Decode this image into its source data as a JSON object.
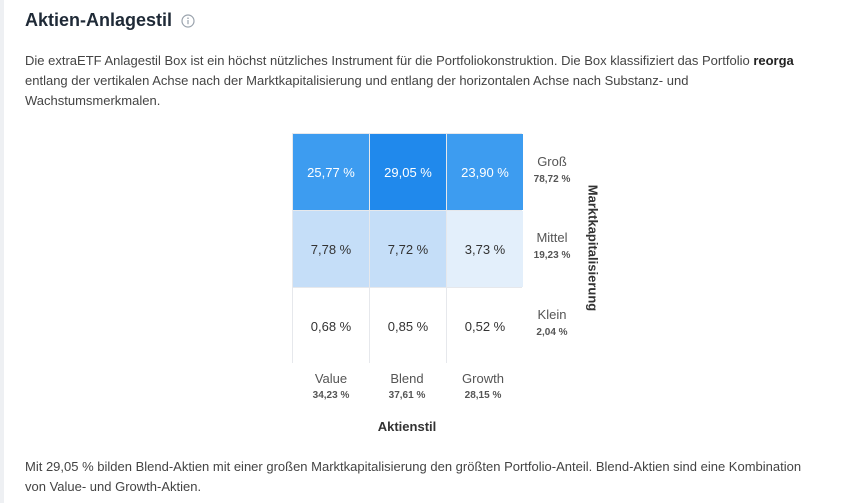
{
  "header": {
    "title": "Aktien-Anlagestil",
    "info_icon": "info-circle-icon"
  },
  "description": {
    "before": "Die extraETF Anlagestil Box ist ein höchst nützliches Instrument für die Portfoliokonstruktion. Die Box klassifiziert das Portfolio ",
    "portfolio": "reorga",
    "after": " entlang der vertikalen Achse nach der Marktkapitalisierung und entlang der horizontalen Achse nach Substanz- und Wachstumsmerkmalen."
  },
  "style_box": {
    "rows": [
      {
        "size": "Groß",
        "size_pct": "78,72 %",
        "cells": [
          {
            "label": "25,77 %",
            "bg": "#3d9cf0",
            "fg": "#ffffff"
          },
          {
            "label": "29,05 %",
            "bg": "#2089ec",
            "fg": "#ffffff"
          },
          {
            "label": "23,90 %",
            "bg": "#3d9cf0",
            "fg": "#ffffff"
          }
        ]
      },
      {
        "size": "Mittel",
        "size_pct": "19,23 %",
        "cells": [
          {
            "label": "7,78 %",
            "bg": "#c5def8",
            "fg": "#333333"
          },
          {
            "label": "7,72 %",
            "bg": "#c5def8",
            "fg": "#333333"
          },
          {
            "label": "3,73 %",
            "bg": "#e3effb",
            "fg": "#333333"
          }
        ]
      },
      {
        "size": "Klein",
        "size_pct": "2,04 %",
        "cells": [
          {
            "label": "0,68 %",
            "bg": "#ffffff",
            "fg": "#333333"
          },
          {
            "label": "0,85 %",
            "bg": "#ffffff",
            "fg": "#333333"
          },
          {
            "label": "0,52 %",
            "bg": "#ffffff",
            "fg": "#333333"
          }
        ]
      }
    ],
    "styles": [
      {
        "name": "Value",
        "pct": "34,23 %"
      },
      {
        "name": "Blend",
        "pct": "37,61 %"
      },
      {
        "name": "Growth",
        "pct": "28,15 %"
      }
    ],
    "x_title": "Aktienstil",
    "y_title": "Marktkapitalisierung"
  },
  "footer": "Mit 29,05 % bilden Blend-Aktien mit einer großen Marktkapitalisierung den größten Portfolio-Anteil. Blend-Aktien sind eine Kombination von Value- und Growth-Aktien."
}
